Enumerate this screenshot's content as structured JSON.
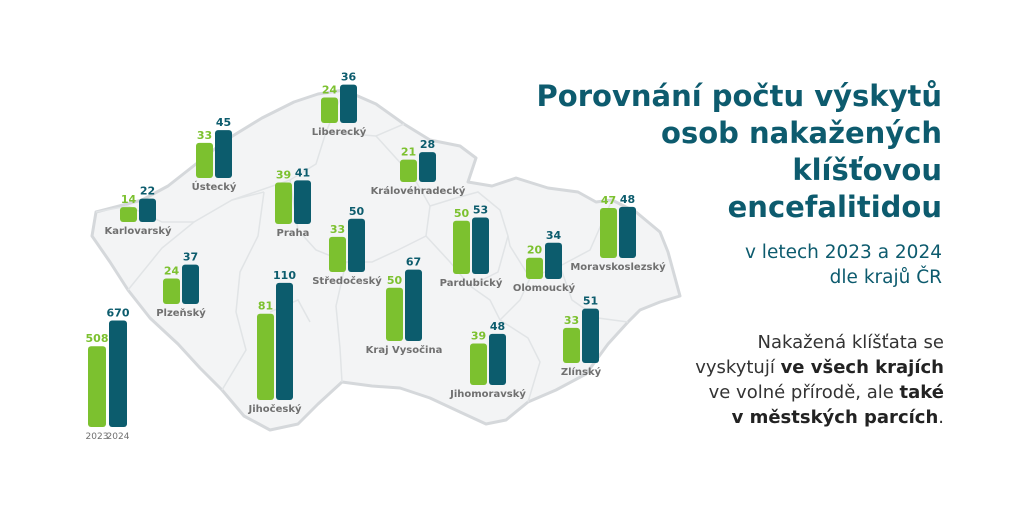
{
  "colors": {
    "y2023": "#7cc12f",
    "y2024": "#0c5c6d",
    "map_fill": "#f3f4f5",
    "map_stroke": "#d5d8db",
    "label": "#707070",
    "title": "#0d5b6e"
  },
  "title_lines": [
    "Porovnání počtu výskytů",
    "osob nakažených",
    "klíšťovou",
    "encefalitidou"
  ],
  "subtitle_lines": [
    "v letech 2023 a 2024",
    "dle krajů ČR"
  ],
  "note": {
    "t1": "Nakažená klíšťata se",
    "t2": "vyskytují ",
    "b1": "ve všech krajích",
    "t3": "ve volné přírodě, ale ",
    "b2": "také",
    "b3": "v městských parcích",
    "t4": "."
  },
  "chart_data": {
    "type": "bar",
    "series": [
      {
        "name": "2023"
      },
      {
        "name": "2024"
      }
    ],
    "regions": [
      {
        "name": "Liberecký",
        "v2023": 24,
        "v2024": 36
      },
      {
        "name": "Ústecký",
        "v2023": 33,
        "v2024": 45
      },
      {
        "name": "Královéhradecký",
        "v2023": 21,
        "v2024": 28
      },
      {
        "name": "Karlovarský",
        "v2023": 14,
        "v2024": 22
      },
      {
        "name": "Praha",
        "v2023": 39,
        "v2024": 41
      },
      {
        "name": "Středočeský",
        "v2023": 33,
        "v2024": 50
      },
      {
        "name": "Pardubický",
        "v2023": 50,
        "v2024": 53
      },
      {
        "name": "Plzeňský",
        "v2023": 24,
        "v2024": 37
      },
      {
        "name": "Kraj Vysočina",
        "v2023": 50,
        "v2024": 67
      },
      {
        "name": "Olomoucký",
        "v2023": 20,
        "v2024": 34
      },
      {
        "name": "Moravskoslezský",
        "v2023": 47,
        "v2024": 48
      },
      {
        "name": "Jihočeský",
        "v2023": 81,
        "v2024": 110
      },
      {
        "name": "Jihomoravský",
        "v2023": 39,
        "v2024": 48
      },
      {
        "name": "Zlínský",
        "v2023": 33,
        "v2024": 51
      }
    ],
    "total": {
      "v2023": 508,
      "v2024": 670
    }
  }
}
